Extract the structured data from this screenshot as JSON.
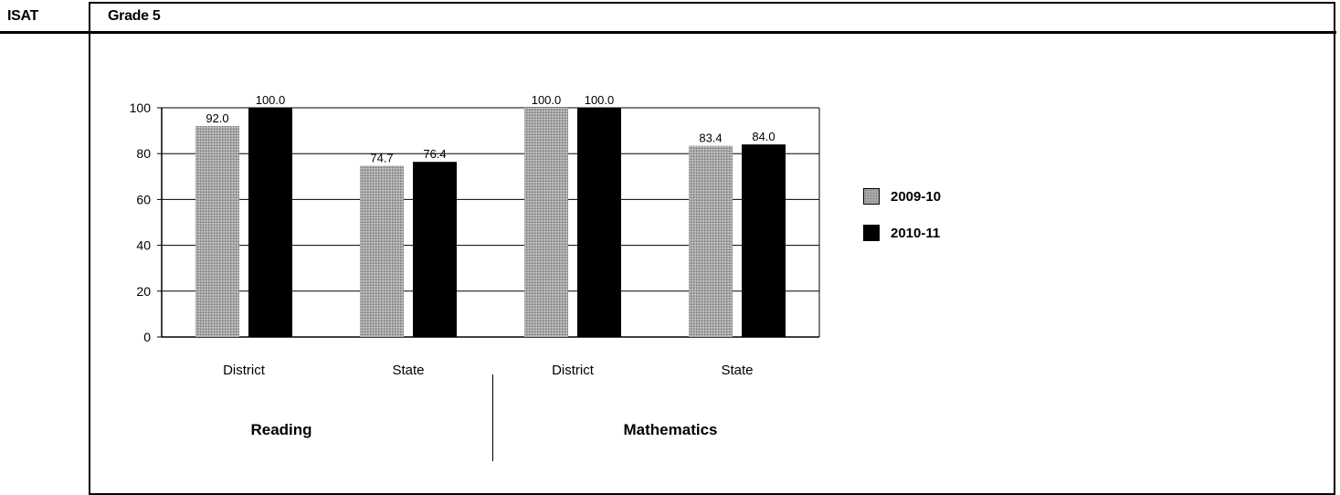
{
  "header": {
    "assessment": "ISAT",
    "grade": "Grade 5"
  },
  "colors": {
    "series_2009_10": "#a8a8a8",
    "series_2010_11": "#000000"
  },
  "chart_data": {
    "type": "bar",
    "ylim": [
      0,
      100
    ],
    "yticks": [
      0,
      20,
      40,
      60,
      80,
      100
    ],
    "grid": true,
    "legend_position": "right",
    "groups": [
      {
        "name": "Reading",
        "categories": [
          "District",
          "State"
        ]
      },
      {
        "name": "Mathematics",
        "categories": [
          "District",
          "State"
        ]
      }
    ],
    "categories": [
      "District",
      "State",
      "District",
      "State"
    ],
    "series": [
      {
        "name": "2009-10",
        "values": [
          92.0,
          74.7,
          100.0,
          83.4
        ],
        "labels": [
          "92.0",
          "74.7",
          "100.0",
          "83.4"
        ]
      },
      {
        "name": "2010-11",
        "values": [
          100.0,
          76.4,
          100.0,
          84.0
        ],
        "labels": [
          "100.0",
          "76.4",
          "100.0",
          "84.0"
        ]
      }
    ]
  }
}
